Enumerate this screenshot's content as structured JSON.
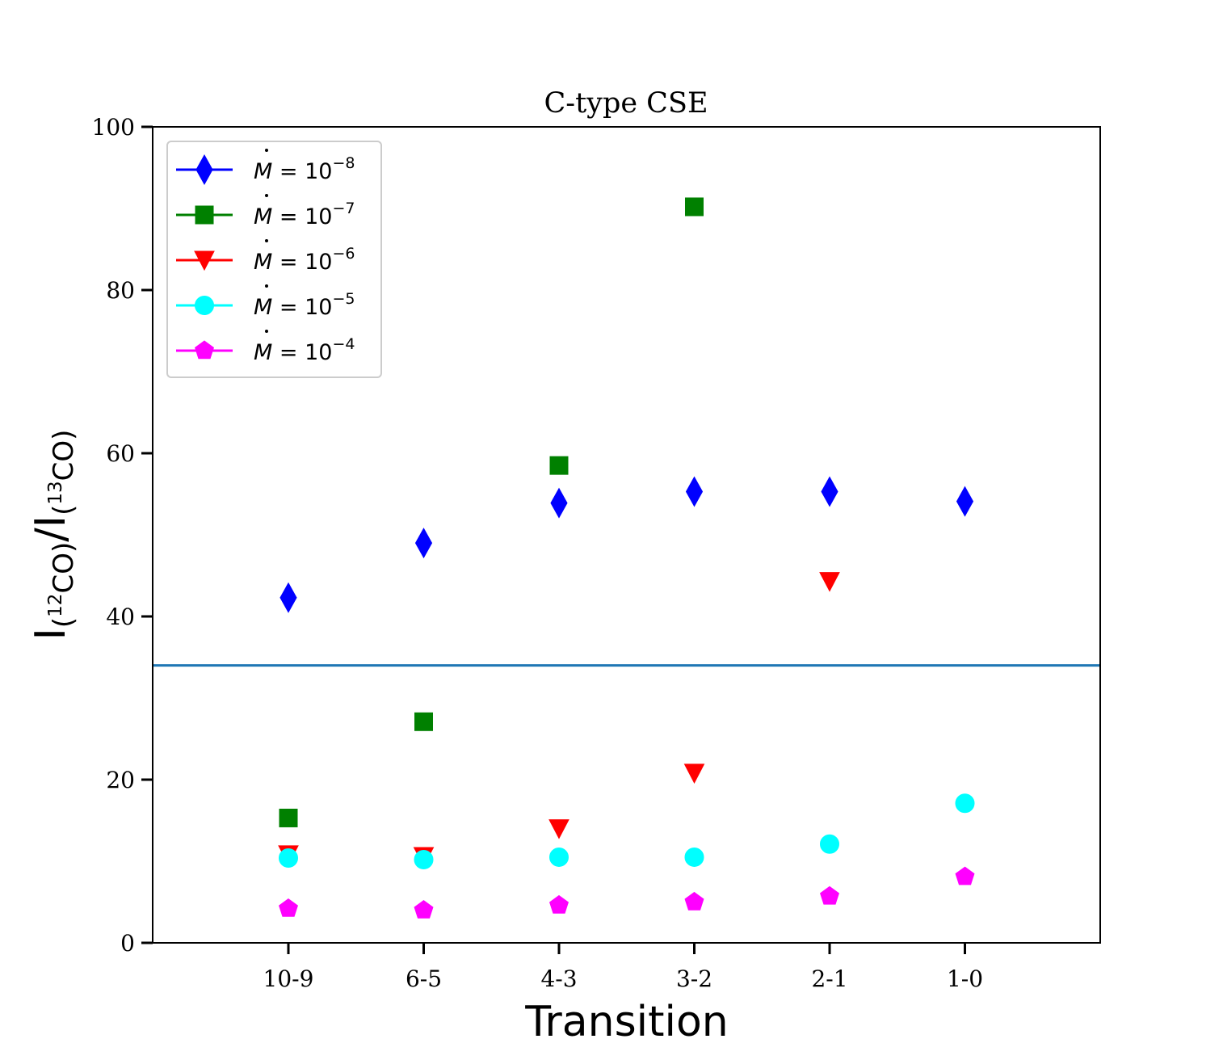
{
  "chart_data": {
    "type": "scatter",
    "title": "C-type CSE",
    "xlabel": "Transition",
    "ylabel": "I(12CO)/I(13CO)",
    "ylabel_parts": {
      "i1": "I",
      "open1": "(",
      "sup1": "12",
      "co1": "CO)",
      "slash": "/",
      "i2": "I",
      "open2": "(",
      "sup2": "13",
      "co2": "CO)"
    },
    "categories": [
      "10-9",
      "6-5",
      "4-3",
      "3-2",
      "2-1",
      "1-0"
    ],
    "ylim": [
      0,
      100
    ],
    "yticks": [
      0,
      20,
      40,
      60,
      80,
      100
    ],
    "grid": false,
    "legend_position": "upper-left",
    "reference_line": {
      "y": 34,
      "color": "#1f77b4"
    },
    "series": [
      {
        "name": "Ṁ = 10⁻⁸",
        "mdot": "M",
        "eq": "= 10",
        "exp": "−8",
        "marker": "diamond",
        "color": "#0000ff",
        "values": [
          42.3,
          49.0,
          53.9,
          55.3,
          55.3,
          54.1
        ]
      },
      {
        "name": "Ṁ = 10⁻⁷",
        "mdot": "M",
        "eq": "= 10",
        "exp": "−7",
        "marker": "square",
        "color": "#008000",
        "values": [
          15.3,
          27.1,
          58.5,
          90.2,
          null,
          null
        ]
      },
      {
        "name": "Ṁ = 10⁻⁶",
        "mdot": "M",
        "eq": "= 10",
        "exp": "−6",
        "marker": "triangle-down",
        "color": "#ff0000",
        "values": [
          10.8,
          10.6,
          14.0,
          20.8,
          44.3,
          null
        ]
      },
      {
        "name": "Ṁ = 10⁻⁵",
        "mdot": "M",
        "eq": "= 10",
        "exp": "−5",
        "marker": "circle",
        "color": "#00ffff",
        "values": [
          10.4,
          10.2,
          10.5,
          10.5,
          12.1,
          17.1
        ]
      },
      {
        "name": "Ṁ = 10⁻⁴",
        "mdot": "M",
        "eq": "= 10",
        "exp": "−4",
        "marker": "pentagon",
        "color": "#ff00ff",
        "values": [
          4.2,
          4.0,
          4.6,
          5.0,
          5.7,
          8.1
        ]
      }
    ]
  }
}
